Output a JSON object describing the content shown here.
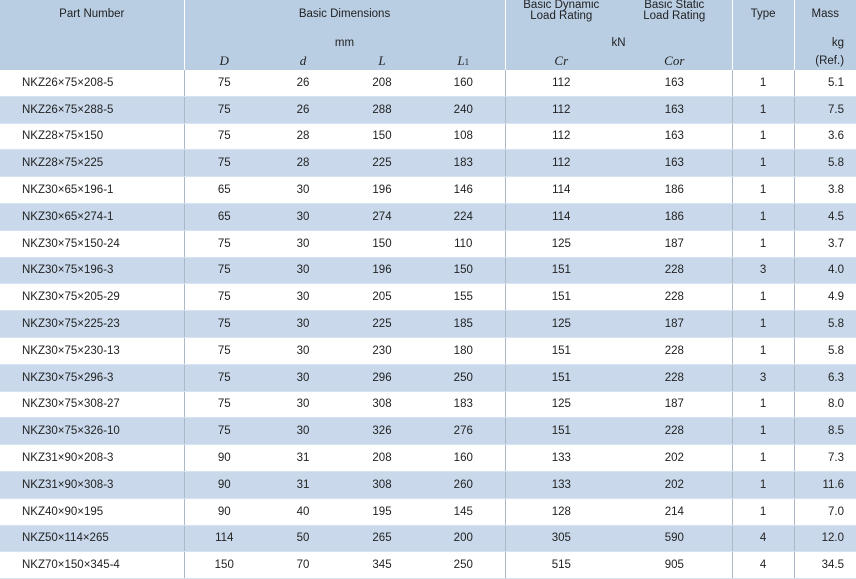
{
  "header": {
    "part_number": "Part Number",
    "basic_dimensions": "Basic Dimensions",
    "dim_unit": "mm",
    "dynamic_rating_line1": "Basic Dynamic",
    "dynamic_rating_line2": "Load Rating",
    "static_rating_line1": "Basic Static",
    "static_rating_line2": "Load Rating",
    "rating_unit": "kN",
    "type": "Type",
    "mass": "Mass",
    "mass_unit": "kg",
    "mass_ref": "(Ref.)",
    "sym_D": "D",
    "sym_d": "d",
    "sym_L": "L",
    "sym_L1": "L",
    "sym_L1_sub": "1",
    "sym_Cr": "Cr",
    "sym_Cor": "Cor"
  },
  "rows": [
    {
      "part": "NKZ26×75×208-5",
      "D": "75",
      "d": "26",
      "L": "208",
      "L1": "160",
      "Cr": "112",
      "Cor": "163",
      "type": "1",
      "mass": "5.1"
    },
    {
      "part": "NKZ26×75×288-5",
      "D": "75",
      "d": "26",
      "L": "288",
      "L1": "240",
      "Cr": "112",
      "Cor": "163",
      "type": "1",
      "mass": "7.5"
    },
    {
      "part": "NKZ28×75×150",
      "D": "75",
      "d": "28",
      "L": "150",
      "L1": "108",
      "Cr": "112",
      "Cor": "163",
      "type": "1",
      "mass": "3.6"
    },
    {
      "part": "NKZ28×75×225",
      "D": "75",
      "d": "28",
      "L": "225",
      "L1": "183",
      "Cr": "112",
      "Cor": "163",
      "type": "1",
      "mass": "5.8"
    },
    {
      "part": "NKZ30×65×196-1",
      "D": "65",
      "d": "30",
      "L": "196",
      "L1": "146",
      "Cr": "114",
      "Cor": "186",
      "type": "1",
      "mass": "3.8"
    },
    {
      "part": "NKZ30×65×274-1",
      "D": "65",
      "d": "30",
      "L": "274",
      "L1": "224",
      "Cr": "114",
      "Cor": "186",
      "type": "1",
      "mass": "4.5"
    },
    {
      "part": "NKZ30×75×150-24",
      "D": "75",
      "d": "30",
      "L": "150",
      "L1": "110",
      "Cr": "125",
      "Cor": "187",
      "type": "1",
      "mass": "3.7"
    },
    {
      "part": "NKZ30×75×196-3",
      "D": "75",
      "d": "30",
      "L": "196",
      "L1": "150",
      "Cr": "151",
      "Cor": "228",
      "type": "3",
      "mass": "4.0"
    },
    {
      "part": "NKZ30×75×205-29",
      "D": "75",
      "d": "30",
      "L": "205",
      "L1": "155",
      "Cr": "151",
      "Cor": "228",
      "type": "1",
      "mass": "4.9"
    },
    {
      "part": "NKZ30×75×225-23",
      "D": "75",
      "d": "30",
      "L": "225",
      "L1": "185",
      "Cr": "125",
      "Cor": "187",
      "type": "1",
      "mass": "5.8"
    },
    {
      "part": "NKZ30×75×230-13",
      "D": "75",
      "d": "30",
      "L": "230",
      "L1": "180",
      "Cr": "151",
      "Cor": "228",
      "type": "1",
      "mass": "5.8"
    },
    {
      "part": "NKZ30×75×296-3",
      "D": "75",
      "d": "30",
      "L": "296",
      "L1": "250",
      "Cr": "151",
      "Cor": "228",
      "type": "3",
      "mass": "6.3"
    },
    {
      "part": "NKZ30×75×308-27",
      "D": "75",
      "d": "30",
      "L": "308",
      "L1": "183",
      "Cr": "125",
      "Cor": "187",
      "type": "1",
      "mass": "8.0"
    },
    {
      "part": "NKZ30×75×326-10",
      "D": "75",
      "d": "30",
      "L": "326",
      "L1": "276",
      "Cr": "151",
      "Cor": "228",
      "type": "1",
      "mass": "8.5"
    },
    {
      "part": "NKZ31×90×208-3",
      "D": "90",
      "d": "31",
      "L": "208",
      "L1": "160",
      "Cr": "133",
      "Cor": "202",
      "type": "1",
      "mass": "7.3"
    },
    {
      "part": "NKZ31×90×308-3",
      "D": "90",
      "d": "31",
      "L": "308",
      "L1": "260",
      "Cr": "133",
      "Cor": "202",
      "type": "1",
      "mass": "11.6"
    },
    {
      "part": "NKZ40×90×195",
      "D": "90",
      "d": "40",
      "L": "195",
      "L1": "145",
      "Cr": "128",
      "Cor": "214",
      "type": "1",
      "mass": "7.0"
    },
    {
      "part": "NKZ50×114×265",
      "D": "114",
      "d": "50",
      "L": "265",
      "L1": "200",
      "Cr": "305",
      "Cor": "590",
      "type": "4",
      "mass": "12.0"
    },
    {
      "part": "NKZ70×150×345-4",
      "D": "150",
      "d": "70",
      "L": "345",
      "L1": "250",
      "Cr": "515",
      "Cor": "905",
      "type": "4",
      "mass": "34.5"
    }
  ],
  "colors": {
    "header_bg": "#b9cde3",
    "alt_row_bg": "#c9d9eb",
    "text": "#222222"
  }
}
